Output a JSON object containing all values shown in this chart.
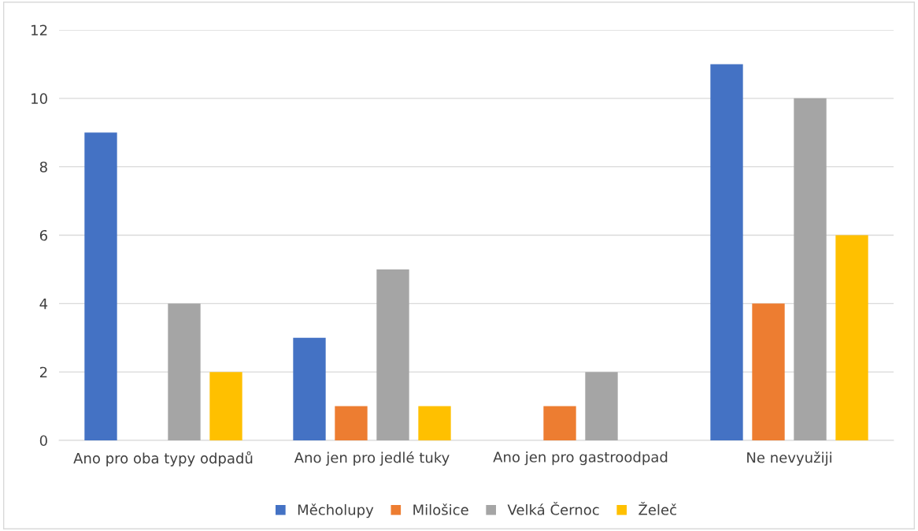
{
  "chart_data": {
    "type": "bar",
    "categories": [
      "Ano pro oba typy odpadů",
      "Ano jen pro jedlé tuky",
      "Ano jen pro gastroodpad",
      "Ne nevyužiji"
    ],
    "series": [
      {
        "name": "Měcholupy",
        "color": "#4472c4",
        "values": [
          9,
          3,
          null,
          11
        ]
      },
      {
        "name": "Milošice",
        "color": "#ed7d31",
        "values": [
          null,
          1,
          1,
          4
        ]
      },
      {
        "name": "Velká Černoc",
        "color": "#a5a5a5",
        "values": [
          4,
          5,
          2,
          10
        ]
      },
      {
        "name": "Želeč",
        "color": "#ffc000",
        "values": [
          2,
          1,
          null,
          6
        ]
      }
    ],
    "ylim": [
      0,
      12
    ],
    "yticks": [
      0,
      2,
      4,
      6,
      8,
      10,
      12
    ],
    "grid": "y",
    "legend": "bottom"
  }
}
